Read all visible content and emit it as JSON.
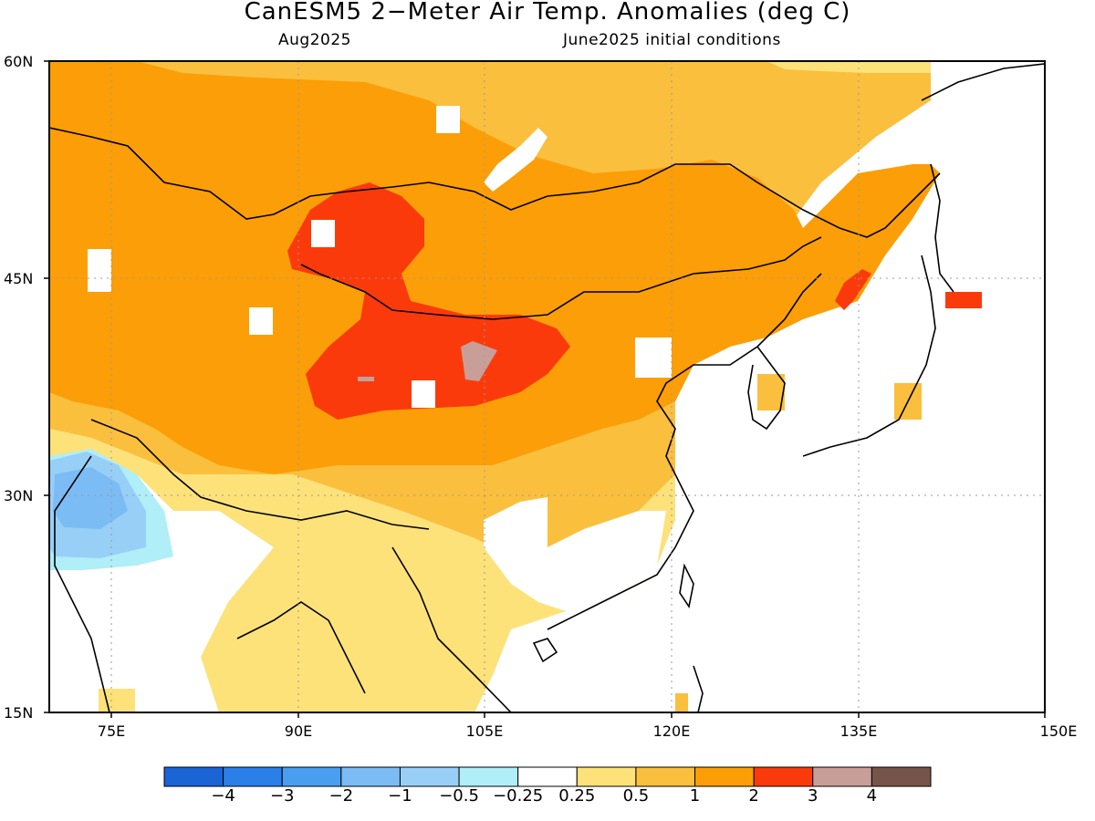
{
  "title": "CanESM5 2−Meter Air Temp. Anomalies (deg C)",
  "subtitle_left": "Aug2025",
  "subtitle_right": "June2025 initial conditions",
  "lat_labels": [
    "60N",
    "45N",
    "30N",
    "15N"
  ],
  "lon_labels": [
    "75E",
    "90E",
    "105E",
    "120E",
    "135E",
    "150E"
  ],
  "colorbar": {
    "colors": [
      "#1a64d6",
      "#2a7fe8",
      "#4a9ef0",
      "#7bbcf5",
      "#98cff7",
      "#b0eef8",
      "#ffffff",
      "#fde27a",
      "#fbbf3e",
      "#fb9e07",
      "#fb3a0c",
      "#c89f98",
      "#77544a"
    ],
    "labels": [
      "−4",
      "−3",
      "−2",
      "−1",
      "−0.5",
      "−0.25",
      "0.25",
      "0.5",
      "1",
      "2",
      "3",
      "4"
    ]
  },
  "map_colors": {
    "anom_0_25_0_5": "#fde27a",
    "anom_0_5_1": "#fbbf3e",
    "anom_1_2": "#fb9e07",
    "anom_2_3": "#fb3a0c",
    "anom_3_4": "#c89f98",
    "anom_neg_0_25_neg_0_5": "#b0eef8",
    "anom_neg_0_5_neg_1": "#98cff7",
    "anom_neg_1_neg_2": "#7bbcf5"
  }
}
